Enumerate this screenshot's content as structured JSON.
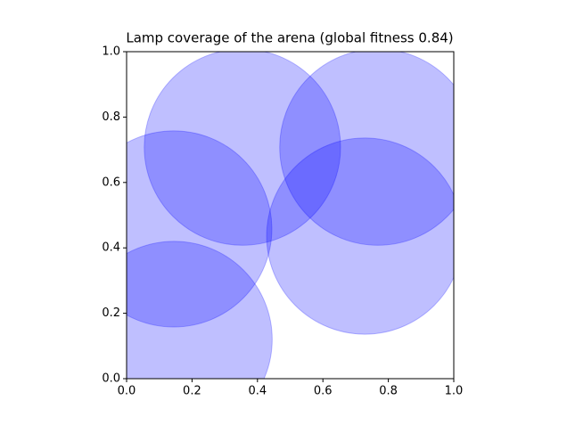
{
  "chart_data": {
    "type": "circle",
    "title": "Lamp coverage of the arena (global fitness 0.84)",
    "x": [
      0.354,
      0.768,
      0.144,
      0.145,
      0.728
    ],
    "values": [
      0.708,
      0.708,
      0.458,
      0.12,
      0.436
    ],
    "sizes": [
      0.3,
      0.3,
      0.3,
      0.3,
      0.3
    ],
    "color": "#0000ff",
    "alpha": 0.25,
    "xlim": [
      0,
      1
    ],
    "ylim": [
      0,
      1
    ],
    "xticks": [
      {
        "value": 0,
        "label": "0.0"
      },
      0.2,
      0.4,
      0.6,
      0.8,
      {
        "value": 1,
        "label": "1.0"
      }
    ],
    "yticks": [
      {
        "value": 0,
        "label": "0.0"
      },
      0.2,
      0.4,
      0.6,
      0.8,
      {
        "value": 1,
        "label": "1.0"
      }
    ],
    "grid": false
  }
}
